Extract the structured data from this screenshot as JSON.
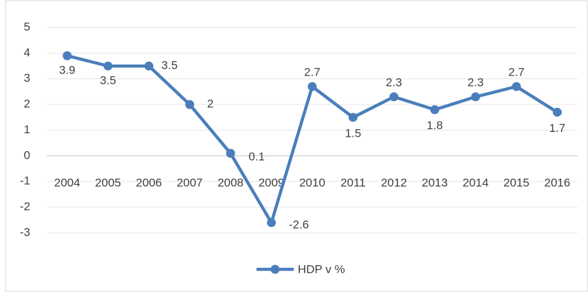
{
  "chart_data": {
    "type": "line",
    "categories": [
      "2004",
      "2005",
      "2006",
      "2007",
      "2008",
      "2009",
      "2010",
      "2011",
      "2012",
      "2013",
      "2014",
      "2015",
      "2016"
    ],
    "series": [
      {
        "name": "HDP v %",
        "color": "#4a7ebb",
        "values": [
          3.9,
          3.5,
          3.5,
          2,
          0.1,
          -2.6,
          2.7,
          1.5,
          2.3,
          1.8,
          2.3,
          2.7,
          1.7
        ]
      }
    ],
    "ylim": [
      -3,
      5
    ],
    "yticks": [
      -3,
      -2,
      -1,
      0,
      1,
      2,
      3,
      4,
      5
    ],
    "grid": true,
    "legend": "bottom"
  }
}
